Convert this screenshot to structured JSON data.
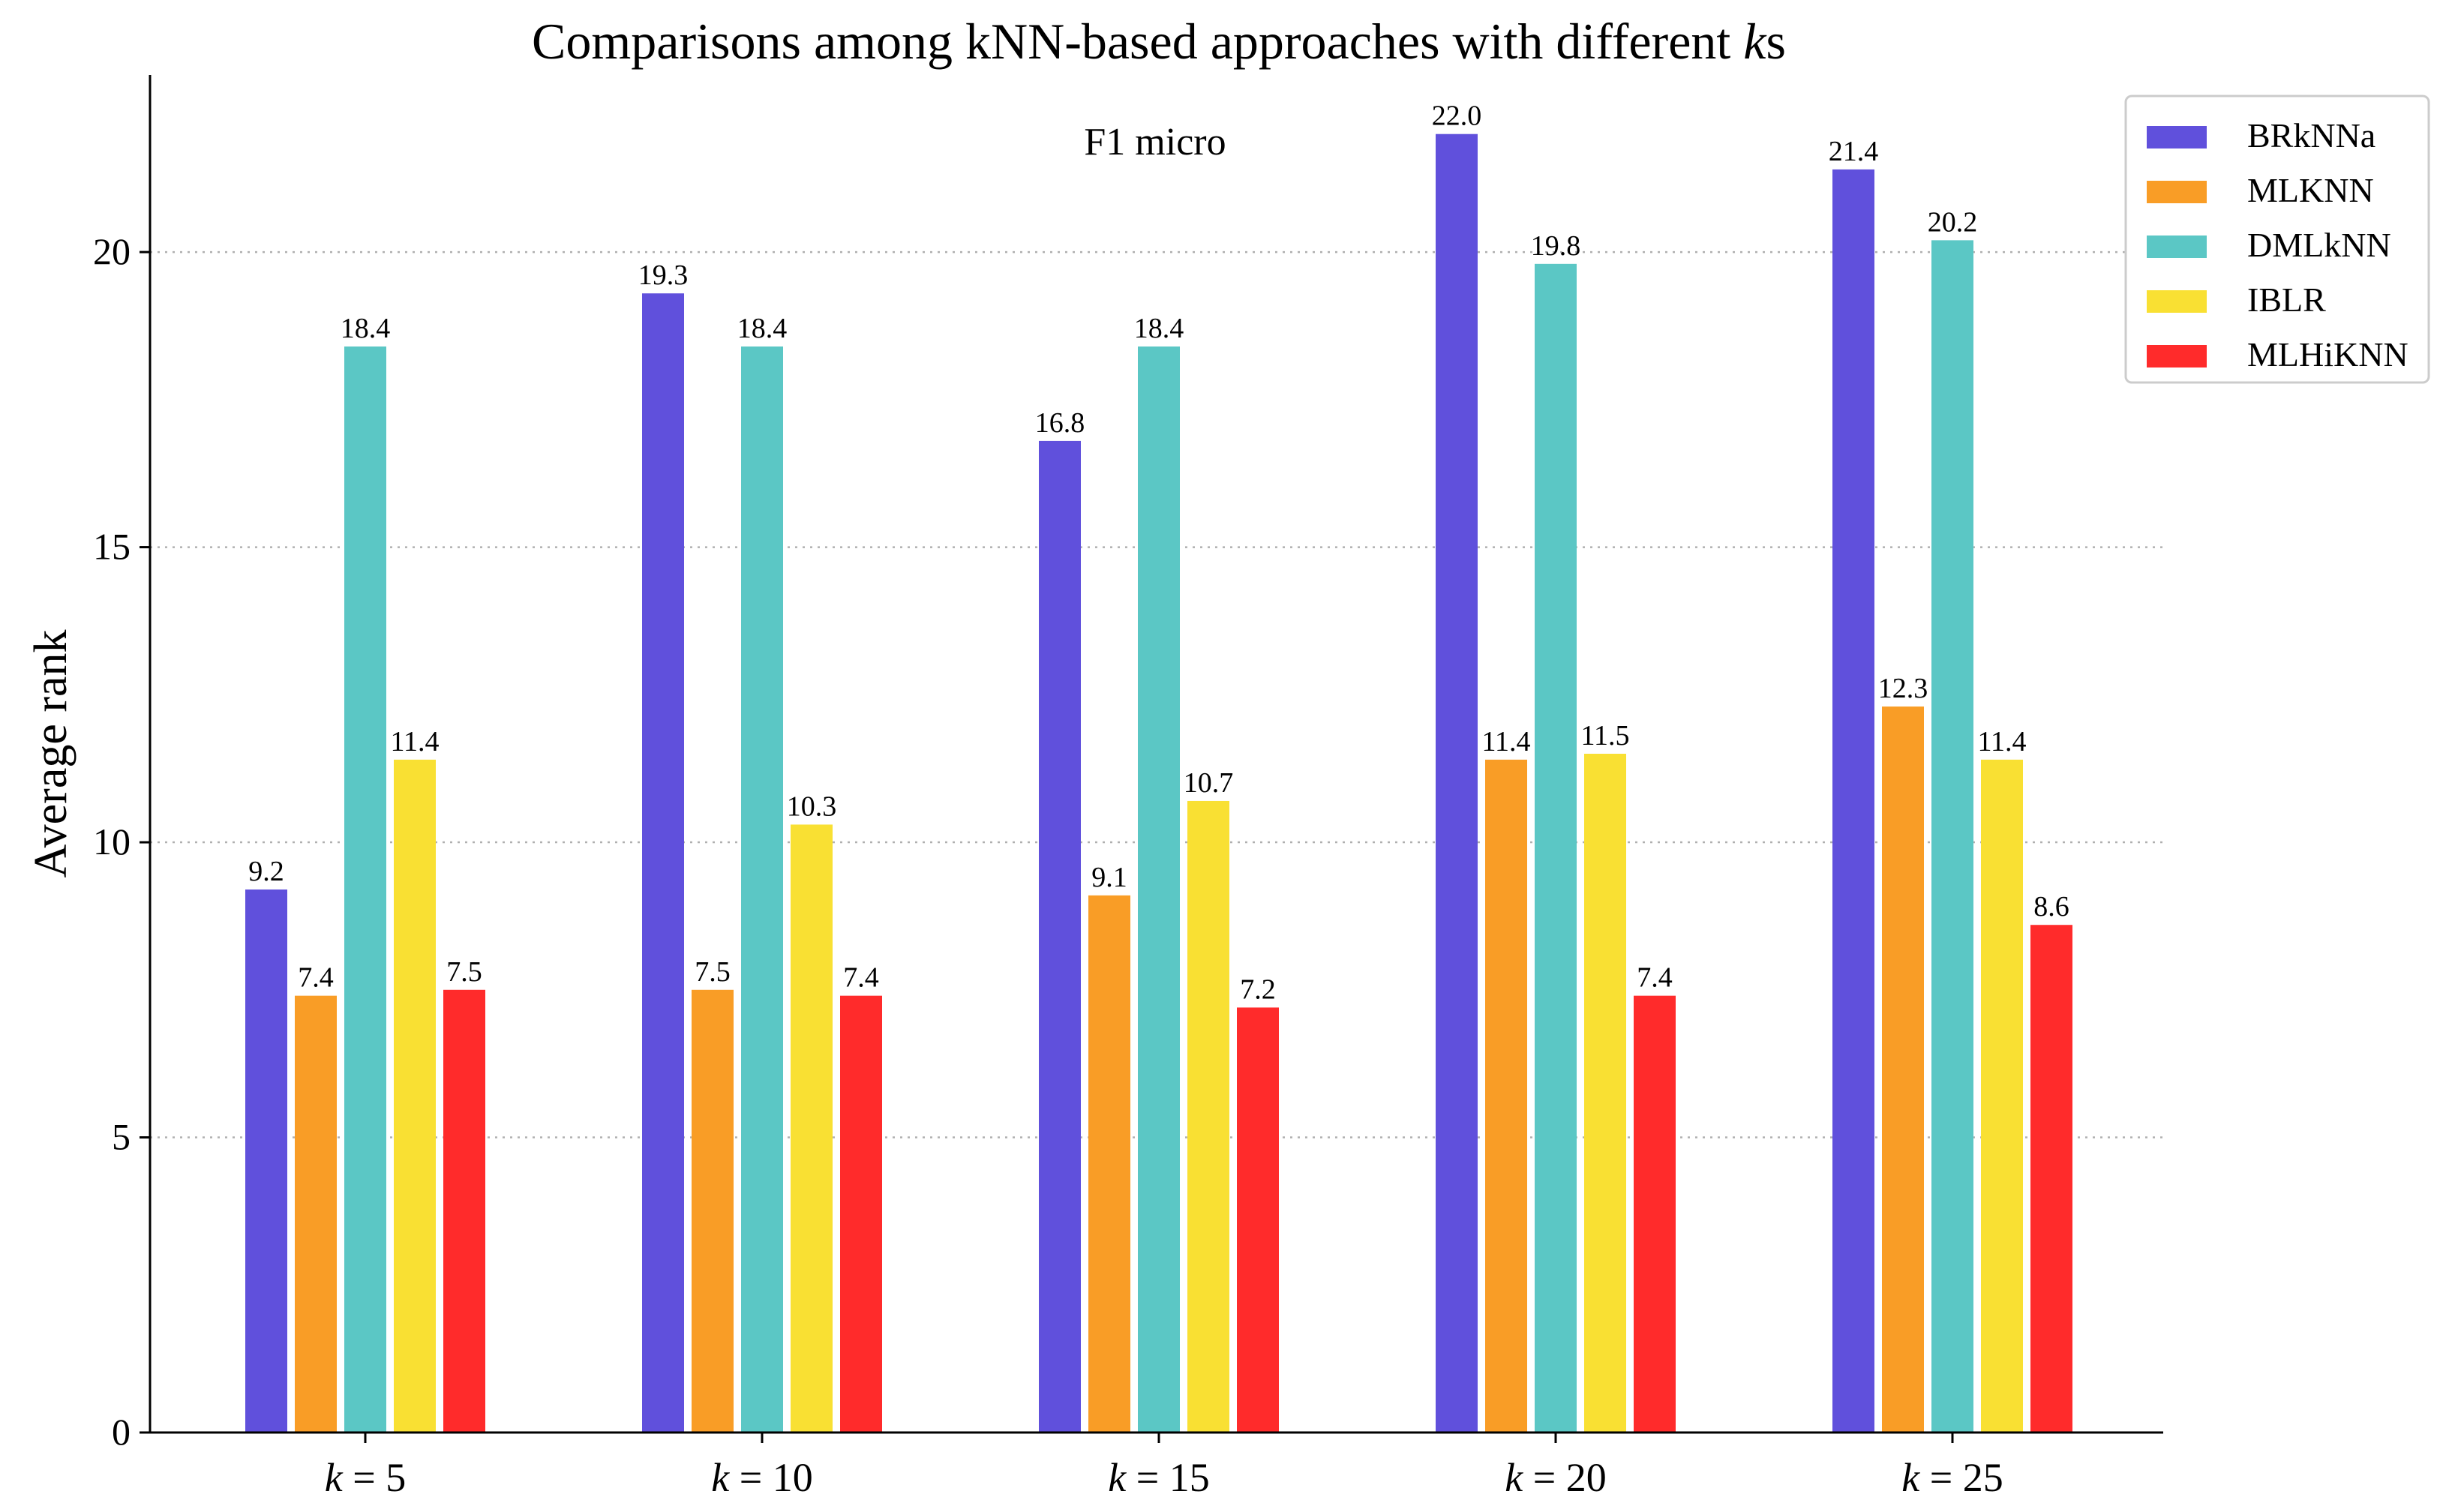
{
  "chart_data": {
    "type": "bar",
    "title_main": "Comparisons among kNN-based approaches with different ",
    "title_k": "k",
    "title_suffix": "s",
    "subtitle": "F1 micro",
    "ylabel": "Average rank",
    "xlabel": "",
    "ylim": [
      0,
      23
    ],
    "yticks": [
      "0",
      "5",
      "10",
      "15",
      "20"
    ],
    "ytick_values": [
      0,
      5,
      10,
      15,
      20
    ],
    "categories": [
      {
        "k": "k",
        "eq": "=",
        "n": "5"
      },
      {
        "k": "k",
        "eq": "=",
        "n": "10"
      },
      {
        "k": "k",
        "eq": "=",
        "n": "15"
      },
      {
        "k": "k",
        "eq": "=",
        "n": "20"
      },
      {
        "k": "k",
        "eq": "=",
        "n": "25"
      }
    ],
    "grid": "horizontal dotted",
    "legend_position": "top-right",
    "series": [
      {
        "name": "BRkNNa",
        "color": "#6050DC",
        "values": [
          9.2,
          19.3,
          16.8,
          22.0,
          21.4
        ],
        "labels": [
          "9.2",
          "19.3",
          "16.8",
          "22.0",
          "21.4"
        ]
      },
      {
        "name": "MLKNN",
        "color": "#F99D26",
        "values": [
          7.4,
          7.5,
          9.1,
          11.4,
          12.3
        ],
        "labels": [
          "7.4",
          "7.5",
          "9.1",
          "11.4",
          "12.3"
        ]
      },
      {
        "name": "DMLkNN",
        "color": "#5BC7C5",
        "values": [
          18.4,
          18.4,
          18.4,
          19.8,
          20.2
        ],
        "labels": [
          "18.4",
          "18.4",
          "18.4",
          "19.8",
          "20.2"
        ]
      },
      {
        "name": "IBLR",
        "color": "#F9E033",
        "values": [
          11.4,
          10.3,
          10.7,
          11.5,
          11.4
        ],
        "labels": [
          "11.4",
          "10.3",
          "10.7",
          "11.5",
          "11.4"
        ]
      },
      {
        "name": "MLHiKNN",
        "color": "#FF2B2B",
        "values": [
          7.5,
          7.4,
          7.2,
          7.4,
          8.6
        ],
        "labels": [
          "7.5",
          "7.4",
          "7.2",
          "7.4",
          "8.6"
        ]
      }
    ]
  }
}
